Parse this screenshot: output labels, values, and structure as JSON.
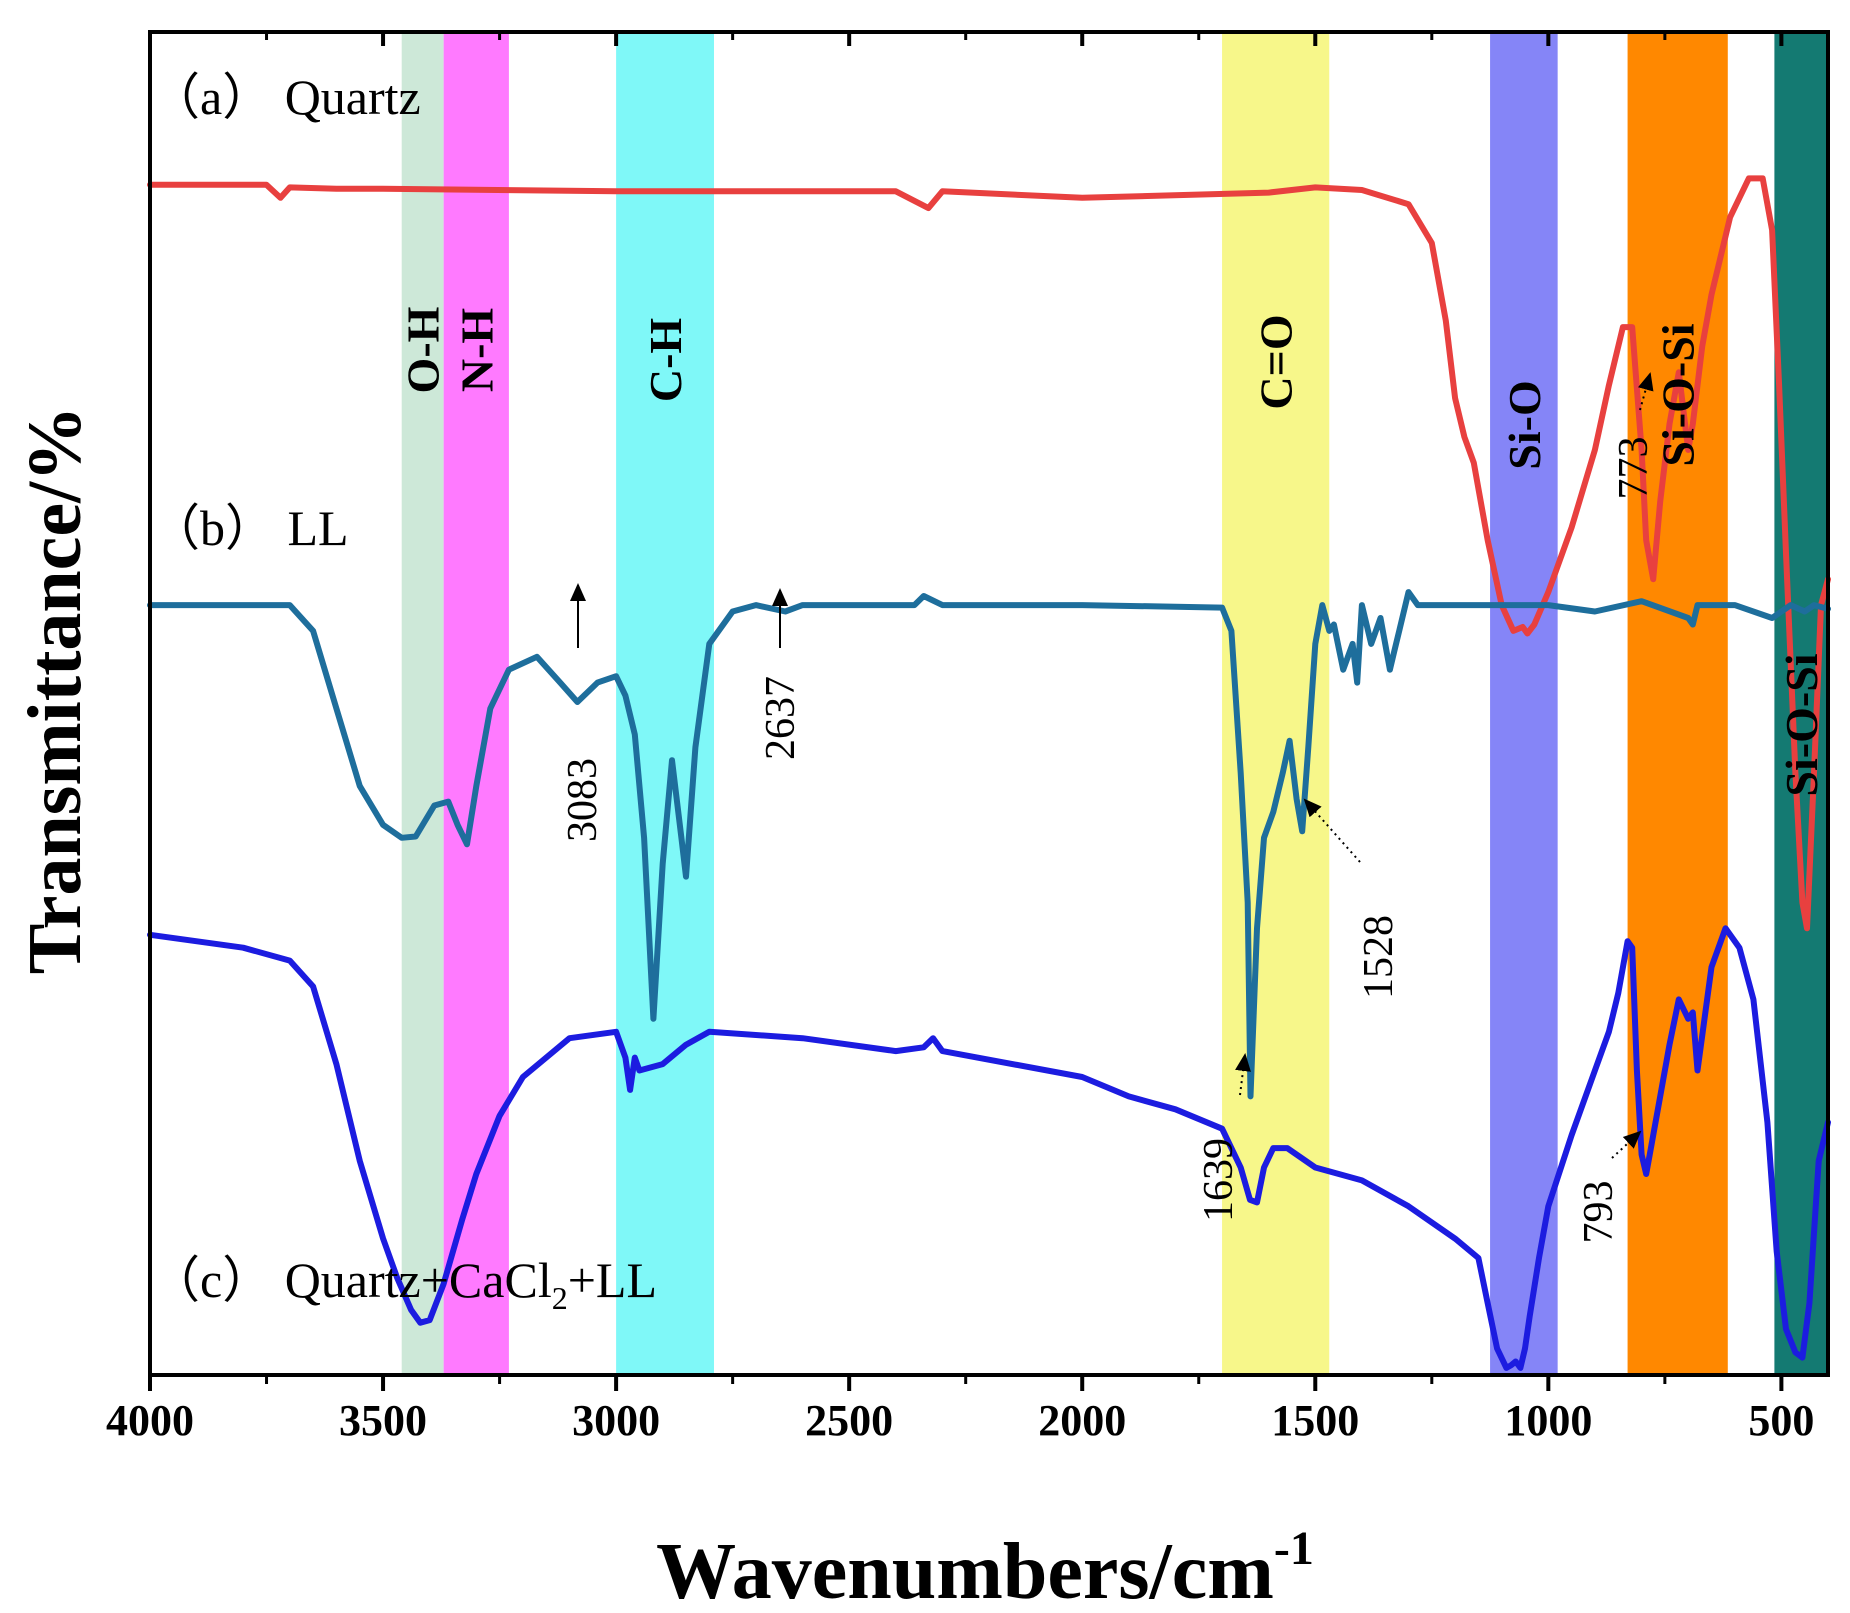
{
  "chart_data": {
    "type": "line",
    "title": "",
    "xlabel": "Wavenumbers/cm",
    "xlabel_superscript": "-1",
    "ylabel": "Transmittance/%",
    "xlim": [
      4000,
      400
    ],
    "x_reversed": true,
    "x_ticks": [
      4000,
      3500,
      3000,
      2500,
      2000,
      1500,
      1000,
      500
    ],
    "x_tick_labels": [
      "4000",
      "3500",
      "3000",
      "2500",
      "2000",
      "1500",
      "1000",
      "500"
    ],
    "ylim": [
      0,
      100
    ],
    "y_ticks_shown": false,
    "grid": false,
    "bands": [
      {
        "label": "O-H",
        "x0": 3460,
        "x1": 3370,
        "color": "#cde8d8"
      },
      {
        "label": "N-H",
        "x0": 3370,
        "x1": 3230,
        "color": "#ff7aff"
      },
      {
        "label": "C-H",
        "x0": 3000,
        "x1": 2790,
        "color": "#7ff8f8"
      },
      {
        "label": "C=O",
        "x0": 1700,
        "x1": 1470,
        "color": "#f7f78a"
      },
      {
        "label": "Si-O",
        "x0": 1125,
        "x1": 980,
        "color": "#8585f7"
      },
      {
        "label": "Si-O-Si",
        "x0": 830,
        "x1": 615,
        "color": "#ff8800"
      },
      {
        "label": "Si-O-Si",
        "x0": 515,
        "x1": 400,
        "color": "#147a72"
      }
    ],
    "series": [
      {
        "name": "(a) Quartz",
        "label": "（a） Quartz",
        "color": "#e8403f",
        "x": [
          4000,
          3750,
          3720,
          3700,
          3600,
          3500,
          3000,
          2400,
          2330,
          2300,
          2000,
          1600,
          1500,
          1400,
          1300,
          1250,
          1220,
          1200,
          1180,
          1160,
          1130,
          1100,
          1075,
          1055,
          1045,
          1030,
          1000,
          950,
          900,
          870,
          840,
          820,
          800,
          790,
          775,
          760,
          740,
          720,
          700,
          690,
          670,
          650,
          610,
          570,
          540,
          520,
          505,
          490,
          470,
          455,
          445,
          430,
          415,
          400
        ],
        "y": [
          90.5,
          90.5,
          89.5,
          90.3,
          90.2,
          90.2,
          90.0,
          90.0,
          88.7,
          90.0,
          89.5,
          89.9,
          90.3,
          90.1,
          89.0,
          86.0,
          80.0,
          74.0,
          71.0,
          69.0,
          63.0,
          58.0,
          56.0,
          56.3,
          55.8,
          56.5,
          59.0,
          64.0,
          70.0,
          75.0,
          79.5,
          79.5,
          70.0,
          63.0,
          60.0,
          66.0,
          72.0,
          76.0,
          70.0,
          72.0,
          78.0,
          82.0,
          88.0,
          91.0,
          91.0,
          87.0,
          75.0,
          62.0,
          45.0,
          35.0,
          33.0,
          45.0,
          58.0,
          60.0
        ]
      },
      {
        "name": "(b) LL",
        "label": "（b） LL",
        "color": "#1e6e9c",
        "x": [
          4000,
          3700,
          3650,
          3600,
          3550,
          3500,
          3460,
          3430,
          3390,
          3360,
          3340,
          3320,
          3300,
          3270,
          3230,
          3170,
          3120,
          3083,
          3040,
          3000,
          2980,
          2960,
          2940,
          2920,
          2900,
          2880,
          2860,
          2850,
          2830,
          2800,
          2750,
          2700,
          2637,
          2600,
          2500,
          2360,
          2340,
          2300,
          2000,
          1700,
          1680,
          1660,
          1645,
          1639,
          1625,
          1610,
          1590,
          1570,
          1555,
          1540,
          1528,
          1515,
          1500,
          1485,
          1470,
          1460,
          1440,
          1420,
          1410,
          1400,
          1380,
          1360,
          1340,
          1330,
          1320,
          1300,
          1280,
          1200,
          1100,
          1000,
          900,
          800,
          700,
          690,
          680,
          600,
          520,
          480,
          450,
          430,
          400
        ],
        "y": [
          58.0,
          58.0,
          56.0,
          50.0,
          44.0,
          41.0,
          40.0,
          40.1,
          42.5,
          42.8,
          41.0,
          39.5,
          44.0,
          50.0,
          53.0,
          54.0,
          52.0,
          50.5,
          52.0,
          52.5,
          51.0,
          48.0,
          40.0,
          26.0,
          38.0,
          46.0,
          40.0,
          37.0,
          47.0,
          55.0,
          57.5,
          58.0,
          57.5,
          58.0,
          58.0,
          58.0,
          58.7,
          58.0,
          58.0,
          57.8,
          56.0,
          45.0,
          35.0,
          20.0,
          33.0,
          40.0,
          42.0,
          45.0,
          47.5,
          43.0,
          40.5,
          47.0,
          55.0,
          58.0,
          56.0,
          56.5,
          53.0,
          55.0,
          52.0,
          58.0,
          55.0,
          57.0,
          53.0,
          54.5,
          56.0,
          59.0,
          58.0,
          58.0,
          58.0,
          58.0,
          57.5,
          58.3,
          57.0,
          56.5,
          58.0,
          58.0,
          57.0,
          58.0,
          57.5,
          58.0,
          57.7
        ]
      },
      {
        "name": "(c) Quartz+CaCl2+LL",
        "label_main": "（c） Quartz+CaCl",
        "label_sub": "2",
        "label_tail": "+LL",
        "color": "#1c1ce0",
        "x": [
          4000,
          3800,
          3700,
          3650,
          3600,
          3550,
          3500,
          3470,
          3440,
          3420,
          3400,
          3370,
          3330,
          3300,
          3250,
          3200,
          3100,
          3000,
          2980,
          2970,
          2960,
          2950,
          2900,
          2850,
          2800,
          2600,
          2400,
          2340,
          2320,
          2300,
          2000,
          1900,
          1800,
          1700,
          1660,
          1640,
          1625,
          1610,
          1590,
          1560,
          1500,
          1400,
          1300,
          1200,
          1150,
          1130,
          1110,
          1090,
          1080,
          1070,
          1060,
          1050,
          1040,
          1020,
          1000,
          950,
          900,
          870,
          850,
          830,
          820,
          810,
          800,
          790,
          780,
          760,
          740,
          720,
          700,
          690,
          680,
          650,
          620,
          590,
          560,
          530,
          510,
          490,
          470,
          455,
          440,
          420,
          400
        ],
        "y": [
          32.5,
          31.5,
          30.5,
          28.5,
          22.5,
          15.0,
          9.0,
          6.0,
          3.5,
          2.5,
          2.7,
          5.5,
          10.5,
          14.0,
          18.5,
          21.5,
          24.5,
          25.0,
          23.0,
          20.5,
          23.0,
          22.0,
          22.5,
          24.0,
          25.0,
          24.5,
          23.5,
          23.8,
          24.5,
          23.5,
          21.5,
          20.0,
          19.0,
          17.5,
          14.5,
          12.0,
          11.8,
          14.5,
          16.0,
          16.0,
          14.5,
          13.5,
          11.5,
          9.0,
          7.5,
          4.0,
          0.5,
          -1.0,
          -0.8,
          -0.5,
          -1.0,
          0.5,
          3.0,
          7.5,
          11.5,
          17.0,
          22.0,
          25.0,
          28.0,
          32.0,
          31.5,
          22.0,
          15.5,
          14.0,
          16.0,
          20.0,
          24.0,
          27.5,
          26.0,
          26.5,
          22.0,
          30.0,
          33.0,
          31.5,
          27.5,
          18.0,
          8.0,
          2.0,
          0.2,
          -0.2,
          4.0,
          15.0,
          18.0
        ]
      }
    ],
    "annotations": [
      {
        "text": "3083",
        "x": 3083,
        "series": "(b) LL"
      },
      {
        "text": "2637",
        "x": 2637,
        "series": "(b) LL"
      },
      {
        "text": "1639",
        "x": 1639,
        "series": "(b) LL"
      },
      {
        "text": "1528",
        "x": 1528,
        "series": "(b) LL"
      },
      {
        "text": "773",
        "x": 773,
        "series": "(a) Quartz"
      },
      {
        "text": "793",
        "x": 793,
        "series": "(c) Quartz+CaCl2+LL"
      }
    ]
  }
}
